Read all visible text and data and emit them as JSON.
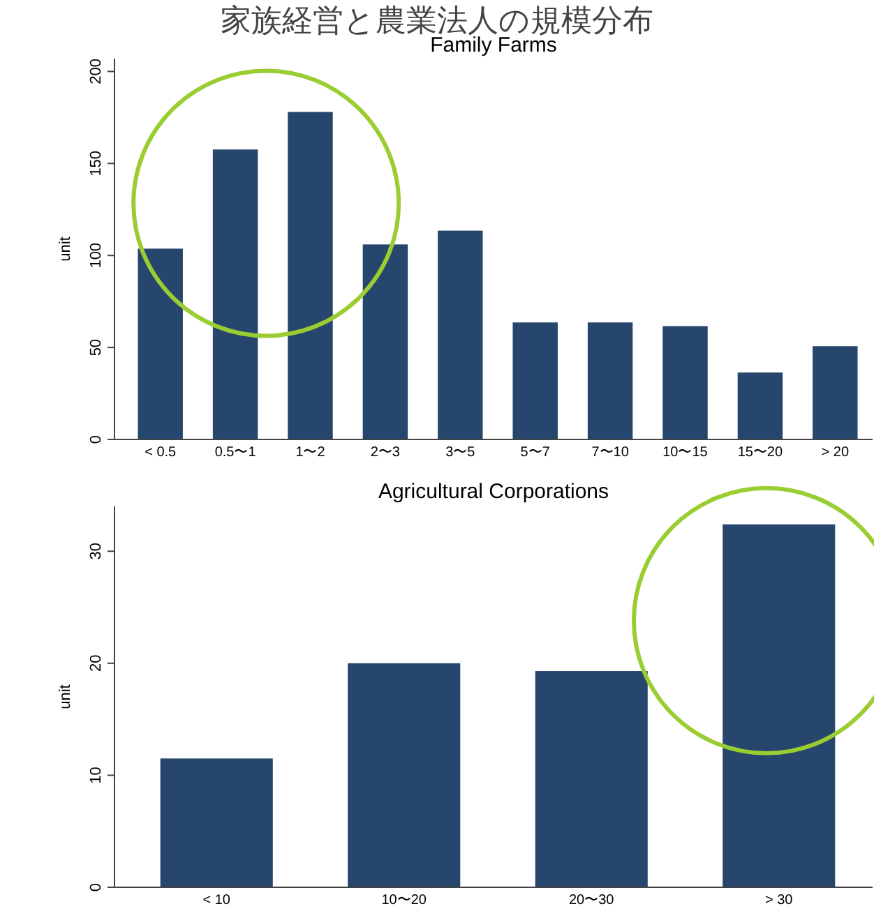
{
  "chart_data": [
    {
      "type": "bar",
      "title": "家族経営と農業法人の規模分布",
      "subtitle": "Family Farms",
      "ylabel": "unit",
      "categories": [
        "< 0.5",
        "0.5〜1",
        "1〜2",
        "2〜3",
        "3〜5",
        "5〜7",
        "7〜10",
        "10〜15",
        "15〜20",
        "> 20"
      ],
      "values": [
        103.7,
        157.6,
        178,
        106,
        113.5,
        63.6,
        63.6,
        61.6,
        36.4,
        50.7
      ],
      "color": "#26466d",
      "ylim": [
        0,
        207
      ],
      "yticks": [
        0,
        50,
        100,
        150,
        200
      ]
    },
    {
      "type": "bar",
      "title": "Agricultural Corporations",
      "ylabel": "unit",
      "categories": [
        "< 10",
        "10〜20",
        "20〜30",
        "> 30"
      ],
      "values": [
        11.5,
        20,
        19.3,
        32.4
      ],
      "color": "#26466d",
      "ylim": [
        0,
        34
      ],
      "yticks": [
        0,
        10,
        20,
        30
      ]
    }
  ]
}
